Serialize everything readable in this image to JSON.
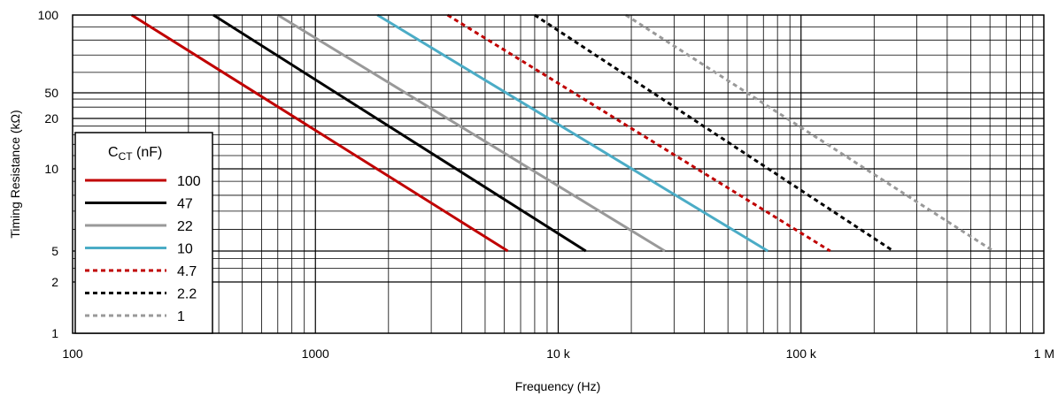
{
  "chart_data": {
    "type": "line",
    "xlabel": "Frequency (Hz)",
    "ylabel": "Timing Resistance (kΩ)",
    "x_scale": "log",
    "xlim": [
      100,
      1000000
    ],
    "x_ticks": [
      {
        "value": 100,
        "label": "100"
      },
      {
        "value": 1000,
        "label": "1000"
      },
      {
        "value": 10000,
        "label": "10 k"
      },
      {
        "value": 100000,
        "label": "100 k"
      },
      {
        "value": 1000000,
        "label": "1 M"
      }
    ],
    "y_ticks": [
      {
        "value": 100,
        "label": "100"
      },
      {
        "value": 50,
        "label": "50"
      },
      {
        "value": 20,
        "label": "20"
      },
      {
        "value": 10,
        "label": "10"
      },
      {
        "value": 5,
        "label": "5"
      },
      {
        "value": 2,
        "label": "2"
      },
      {
        "value": 1,
        "label": "1"
      }
    ],
    "grid": true,
    "legend": {
      "title_main": "C",
      "title_sub": "CT",
      "title_unit": " (nF)",
      "placement": "lower-left"
    },
    "series": [
      {
        "name": "100",
        "color": "#c00000",
        "dashed": false,
        "x": [
          175,
          6200
        ],
        "y": [
          100,
          5
        ]
      },
      {
        "name": "47",
        "color": "#000000",
        "dashed": false,
        "x": [
          380,
          13000
        ],
        "y": [
          100,
          5
        ]
      },
      {
        "name": "22",
        "color": "#999999",
        "dashed": false,
        "x": [
          700,
          27500
        ],
        "y": [
          100,
          5
        ]
      },
      {
        "name": "10",
        "color": "#4bacc6",
        "dashed": false,
        "x": [
          1800,
          73000
        ],
        "y": [
          100,
          5
        ]
      },
      {
        "name": "4.7",
        "color": "#c00000",
        "dashed": true,
        "x": [
          3500,
          132000
        ],
        "y": [
          100,
          5
        ]
      },
      {
        "name": "2.2",
        "color": "#000000",
        "dashed": true,
        "x": [
          8000,
          240000
        ],
        "y": [
          100,
          5
        ]
      },
      {
        "name": "1",
        "color": "#999999",
        "dashed": true,
        "x": [
          19000,
          620000
        ],
        "y": [
          100,
          5
        ]
      }
    ]
  }
}
